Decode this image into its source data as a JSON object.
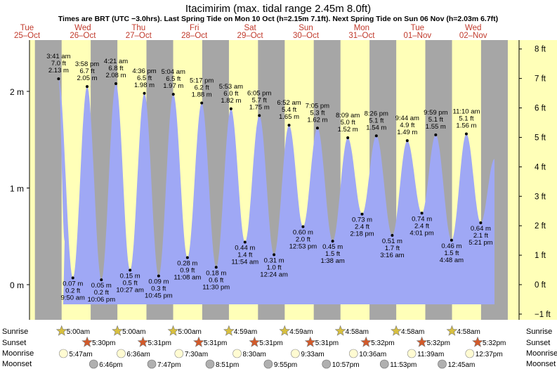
{
  "chart_data": {
    "type": "area",
    "title": "Itacimirim (max. tidal range 2.45m 8.0ft)",
    "subtitle": "Times are BRT (UTC −3.0hrs). Last Spring Tide on Mon 10 Oct (h=2.15m 7.1ft). Next Spring Tide on Sun 06 Nov (h=2.03m 6.7ft)",
    "days": [
      {
        "dow": "Tue",
        "date": "25–Oct"
      },
      {
        "dow": "Wed",
        "date": "26–Oct"
      },
      {
        "dow": "Thu",
        "date": "27–Oct"
      },
      {
        "dow": "Fri",
        "date": "28–Oct"
      },
      {
        "dow": "Sat",
        "date": "29–Oct"
      },
      {
        "dow": "Sun",
        "date": "30–Oct"
      },
      {
        "dow": "Mon",
        "date": "31–Oct"
      },
      {
        "dow": "Tue",
        "date": "01–Nov"
      },
      {
        "dow": "Wed",
        "date": "02–Nov"
      }
    ],
    "y_left_ticks": [
      "0 m",
      "1 m",
      "2 m"
    ],
    "y_right_ticks": [
      "−1 ft",
      "0 ft",
      "1 ft",
      "2 ft",
      "3 ft",
      "4 ft",
      "5 ft",
      "6 ft",
      "7 ft",
      "8 ft"
    ],
    "ylim_m": [
      -0.2,
      2.5
    ],
    "tides": [
      {
        "time": "3:41 am",
        "m": "2.13 m",
        "ft": "7.0 ft",
        "h": 2.13,
        "high": true
      },
      {
        "time": "9:50 am",
        "m": "0.07 m",
        "ft": "0.2 ft",
        "h": 0.07,
        "high": false
      },
      {
        "time": "3:58 pm",
        "m": "2.05 m",
        "ft": "6.7 ft",
        "h": 2.05,
        "high": true
      },
      {
        "time": "10:06 pm",
        "m": "0.05 m",
        "ft": "0.2 ft",
        "h": 0.05,
        "high": false
      },
      {
        "time": "4:21 am",
        "m": "2.08 m",
        "ft": "6.8 ft",
        "h": 2.08,
        "high": true
      },
      {
        "time": "10:27 am",
        "m": "0.15 m",
        "ft": "0.5 ft",
        "h": 0.15,
        "high": false
      },
      {
        "time": "4:36 pm",
        "m": "1.98 m",
        "ft": "6.5 ft",
        "h": 1.98,
        "high": true
      },
      {
        "time": "10:45 pm",
        "m": "0.09 m",
        "ft": "0.3 ft",
        "h": 0.09,
        "high": false
      },
      {
        "time": "5:04 am",
        "m": "1.97 m",
        "ft": "6.5 ft",
        "h": 1.97,
        "high": true
      },
      {
        "time": "11:08 am",
        "m": "0.28 m",
        "ft": "0.9 ft",
        "h": 0.28,
        "high": false
      },
      {
        "time": "5:17 pm",
        "m": "1.88 m",
        "ft": "6.2 ft",
        "h": 1.88,
        "high": true
      },
      {
        "time": "11:30 pm",
        "m": "0.18 m",
        "ft": "0.6 ft",
        "h": 0.18,
        "high": false
      },
      {
        "time": "5:53 am",
        "m": "1.82 m",
        "ft": "6.0 ft",
        "h": 1.82,
        "high": true
      },
      {
        "time": "11:54 am",
        "m": "0.44 m",
        "ft": "1.4 ft",
        "h": 0.44,
        "high": false
      },
      {
        "time": "6:05 pm",
        "m": "1.75 m",
        "ft": "5.7 ft",
        "h": 1.75,
        "high": true
      },
      {
        "time": "12:24 am",
        "m": "0.31 m",
        "ft": "1.0 ft",
        "h": 0.31,
        "high": false
      },
      {
        "time": "6:52 am",
        "m": "1.65 m",
        "ft": "5.4 ft",
        "h": 1.65,
        "high": true
      },
      {
        "time": "12:53 pm",
        "m": "0.60 m",
        "ft": "2.0 ft",
        "h": 0.6,
        "high": false
      },
      {
        "time": "7:05 pm",
        "m": "1.62 m",
        "ft": "5.3 ft",
        "h": 1.62,
        "high": true
      },
      {
        "time": "1:38 am",
        "m": "0.45 m",
        "ft": "1.5 ft",
        "h": 0.45,
        "high": false
      },
      {
        "time": "8:09 am",
        "m": "1.52 m",
        "ft": "5.0 ft",
        "h": 1.52,
        "high": true
      },
      {
        "time": "2:18 pm",
        "m": "0.73 m",
        "ft": "2.4 ft",
        "h": 0.73,
        "high": false
      },
      {
        "time": "8:26 pm",
        "m": "1.54 m",
        "ft": "5.1 ft",
        "h": 1.54,
        "high": true
      },
      {
        "time": "3:16 am",
        "m": "0.51 m",
        "ft": "1.7 ft",
        "h": 0.51,
        "high": false
      },
      {
        "time": "9:44 am",
        "m": "1.49 m",
        "ft": "4.9 ft",
        "h": 1.49,
        "high": true
      },
      {
        "time": "4:01 pm",
        "m": "0.74 m",
        "ft": "2.4 ft",
        "h": 0.74,
        "high": false
      },
      {
        "time": "9:59 pm",
        "m": "1.55 m",
        "ft": "5.1 ft",
        "h": 1.55,
        "high": true
      },
      {
        "time": "4:48 am",
        "m": "0.46 m",
        "ft": "1.5 ft",
        "h": 0.46,
        "high": false
      },
      {
        "time": "11:10 am",
        "m": "1.56 m",
        "ft": "5.1 ft",
        "h": 1.56,
        "high": true
      },
      {
        "time": "5:21 pm",
        "m": "0.64 m",
        "ft": "2.1 ft",
        "h": 0.64,
        "high": false
      }
    ],
    "astro_labels": [
      "Sunrise",
      "Sunset",
      "Moonrise",
      "Moonset"
    ],
    "sunrise": [
      "5:00am",
      "5:00am",
      "5:00am",
      "4:59am",
      "4:59am",
      "4:58am",
      "4:58am",
      "4:58am"
    ],
    "sunset": [
      "5:30pm",
      "5:31pm",
      "5:31pm",
      "5:31pm",
      "5:31pm",
      "5:32pm",
      "5:32pm",
      "5:32pm"
    ],
    "moonrise": [
      "5:47am",
      "6:36am",
      "7:30am",
      "8:30am",
      "9:33am",
      "10:36am",
      "11:39am",
      "12:37pm"
    ],
    "moonset": [
      "6:46pm",
      "7:47pm",
      "8:51pm",
      "9:55pm",
      "10:57pm",
      "11:53pm",
      "12:45am"
    ],
    "colors": {
      "water": "#9fa8f5",
      "day": "#ffffb8",
      "night": "#a6a6a6",
      "date_red": "#cc0000",
      "sun": "#d8c040",
      "sunset": "#d35a2a",
      "moon_rise": "#fffbd2",
      "moon_set": "#b0b0b0"
    }
  }
}
